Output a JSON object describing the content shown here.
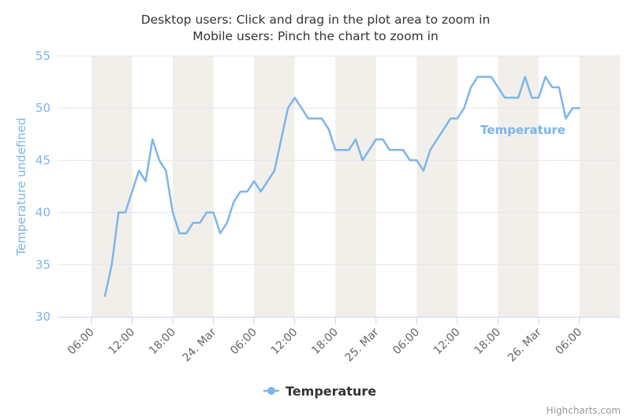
{
  "chart_data": {
    "type": "line",
    "subtitle_lines": [
      "Desktop users: Click and drag in the plot area to zoom in",
      "Mobile users: Pinch the chart to zoom in"
    ],
    "ylabel": "Temperature undefined",
    "ylim": [
      30,
      55
    ],
    "y_ticks": [
      "30",
      "35",
      "40",
      "45",
      "50",
      "55"
    ],
    "x_tick_labels": [
      "06:00",
      "12:00",
      "18:00",
      "24. Mar",
      "06:00",
      "12:00",
      "18:00",
      "25. Mar",
      "06:00",
      "12:00",
      "18:00",
      "26. Mar",
      "06:00"
    ],
    "x_tick_hours": [
      6,
      12,
      18,
      24,
      30,
      36,
      42,
      48,
      54,
      60,
      66,
      72,
      78
    ],
    "x_range_hours": [
      1,
      84
    ],
    "night_bands_hours": [
      [
        6,
        12
      ],
      [
        18,
        24
      ],
      [
        30,
        36
      ],
      [
        42,
        48
      ],
      [
        54,
        60
      ],
      [
        66,
        72
      ],
      [
        78,
        84
      ]
    ],
    "grid": true,
    "legend_position": "bottom-center",
    "series": [
      {
        "name": "Temperature",
        "color": "#7cb5ec",
        "x_hours": [
          8,
          9,
          10,
          11,
          12,
          13,
          14,
          15,
          16,
          17,
          18,
          19,
          20,
          21,
          22,
          23,
          24,
          25,
          26,
          27,
          28,
          29,
          30,
          31,
          32,
          33,
          34,
          35,
          36,
          37,
          38,
          39,
          40,
          41,
          42,
          43,
          44,
          45,
          46,
          47,
          48,
          49,
          50,
          51,
          52,
          53,
          54,
          55,
          56,
          57,
          58,
          59,
          60,
          61,
          62,
          63,
          64,
          65,
          66,
          67,
          68,
          69,
          70,
          71,
          72,
          73,
          74,
          75,
          76,
          77,
          78
        ],
        "values": [
          32,
          35,
          40,
          40,
          42,
          44,
          43,
          47,
          45,
          44,
          40,
          38,
          38,
          39,
          39,
          40,
          40,
          38,
          39,
          41,
          42,
          42,
          43,
          42,
          43,
          44,
          47,
          50,
          51,
          50,
          49,
          49,
          49,
          48,
          46,
          46,
          46,
          47,
          45,
          46,
          47,
          47,
          46,
          46,
          46,
          45,
          45,
          44,
          46,
          47,
          48,
          49,
          49,
          50,
          52,
          53,
          53,
          53,
          52,
          51,
          51,
          51,
          53,
          51,
          51,
          53,
          52,
          52,
          49,
          50,
          50
        ]
      }
    ]
  },
  "legend": {
    "label": "Temperature"
  },
  "credits": {
    "label": "Highcharts.com"
  }
}
